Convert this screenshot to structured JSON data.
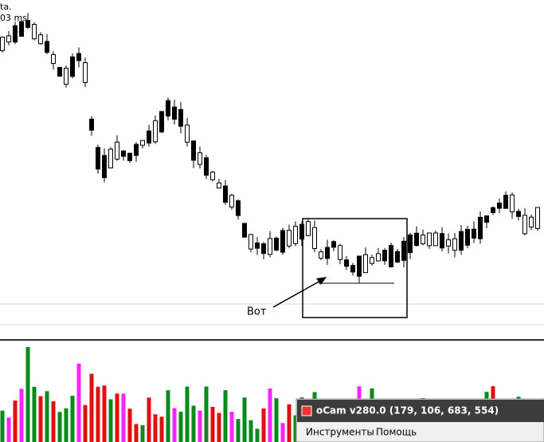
{
  "overlay": {
    "line1": "ta.",
    "line2": "03 ms"
  },
  "annotation": "Вот",
  "ocam": {
    "title": "oCam v280.0 (179, 106, 683, 554)",
    "menu": [
      "Инструменты",
      "Помощь"
    ]
  }
}
